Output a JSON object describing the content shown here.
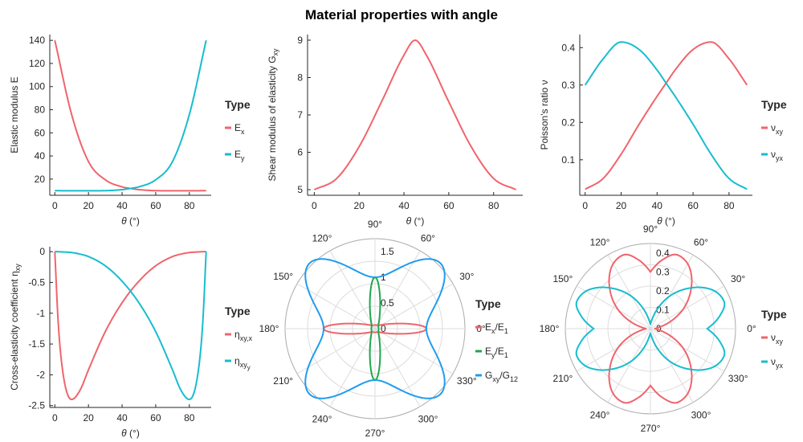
{
  "suptitle": "Material properties with angle",
  "colors": {
    "red": "#f0646c",
    "cyan": "#17bdcf",
    "green": "#1ea84a",
    "blue": "#1f9cf0",
    "axis": "#262626",
    "grid": "#dcdcdc"
  },
  "chart_data": [
    {
      "type": "line",
      "xlabel": "θ (°)",
      "ylabel": "Elastic modulus E",
      "xlim": [
        -3,
        93
      ],
      "ylim": [
        6,
        145
      ],
      "xticks": [
        0,
        20,
        40,
        60,
        80
      ],
      "yticks": [
        20,
        40,
        60,
        80,
        100,
        120,
        140
      ],
      "legend_title": "Type",
      "x": [
        0,
        10,
        20,
        30,
        40,
        45,
        50,
        60,
        70,
        80,
        90
      ],
      "series": [
        {
          "name": "Ex",
          "color": "red",
          "values": [
            140,
            75.8,
            35.2,
            19.4,
            13.3,
            11.9,
            10.9,
            10.0,
            9.9,
            9.9,
            10
          ]
        },
        {
          "name": "Ey",
          "color": "cyan",
          "values": [
            10,
            9.9,
            9.9,
            10.0,
            10.9,
            11.9,
            13.3,
            19.4,
            35.2,
            75.8,
            140
          ]
        }
      ]
    },
    {
      "type": "line",
      "xlabel": "θ (°)",
      "ylabel": "Shear modulus of elasticity Gxy",
      "xlim": [
        -3,
        93
      ],
      "ylim": [
        4.85,
        9.15
      ],
      "xticks": [
        0,
        20,
        40,
        60,
        80
      ],
      "yticks": [
        5,
        6,
        7,
        8,
        9
      ],
      "x": [
        0,
        10,
        20,
        30,
        40,
        45,
        50,
        60,
        70,
        80,
        90
      ],
      "series": [
        {
          "name": "Gxy",
          "color": "red",
          "values": [
            5.0,
            5.3,
            6.15,
            7.35,
            8.6,
            9.0,
            8.6,
            7.35,
            6.15,
            5.3,
            5.0
          ]
        }
      ]
    },
    {
      "type": "line",
      "xlabel": "θ (°)",
      "ylabel": "Poisson's ratio ν",
      "xlim": [
        -3,
        93
      ],
      "ylim": [
        0.005,
        0.435
      ],
      "xticks": [
        0,
        20,
        40,
        60,
        80
      ],
      "yticks": [
        0.1,
        0.2,
        0.3,
        0.4
      ],
      "legend_title": "Type",
      "x": [
        0,
        10,
        20,
        30,
        40,
        45,
        50,
        60,
        70,
        80,
        90
      ],
      "series": [
        {
          "name": "νxy",
          "color": "red",
          "values": [
            0.021,
            0.05,
            0.115,
            0.195,
            0.27,
            0.305,
            0.34,
            0.395,
            0.415,
            0.37,
            0.3
          ]
        },
        {
          "name": "νyx",
          "color": "cyan",
          "values": [
            0.3,
            0.37,
            0.415,
            0.395,
            0.34,
            0.305,
            0.27,
            0.195,
            0.115,
            0.05,
            0.021
          ]
        }
      ]
    },
    {
      "type": "line",
      "xlabel": "θ (°)",
      "ylabel": "Cross-elasticity coefficient ηxy",
      "xlim": [
        -3,
        93
      ],
      "ylim": [
        -2.53,
        0.08
      ],
      "xticks": [
        0,
        20,
        40,
        60,
        80
      ],
      "yticks": [
        0,
        -0.5,
        -1,
        -1.5,
        -2,
        -2.5
      ],
      "legend_title": "Type",
      "x": [
        0,
        2,
        5,
        10,
        15,
        20,
        30,
        40,
        50,
        60,
        70,
        75,
        80,
        85,
        88,
        90
      ],
      "series": [
        {
          "name": "ηxy,x",
          "color": "red",
          "values": [
            0,
            -1.15,
            -2.0,
            -2.4,
            -2.25,
            -1.92,
            -1.3,
            -0.83,
            -0.48,
            -0.23,
            -0.08,
            -0.04,
            -0.015,
            -0.005,
            -0.001,
            0
          ]
        },
        {
          "name": "ηxyy",
          "color": "cyan",
          "values": [
            0,
            -0.001,
            -0.005,
            -0.015,
            -0.04,
            -0.08,
            -0.23,
            -0.48,
            -0.83,
            -1.3,
            -1.92,
            -2.25,
            -2.4,
            -2.0,
            -1.15,
            0
          ]
        }
      ]
    },
    {
      "type": "polar",
      "rlim": [
        0,
        1.75
      ],
      "rticks": [
        0,
        0.5,
        1,
        1.5
      ],
      "angle_ticks": [
        0,
        30,
        60,
        90,
        120,
        150,
        180,
        210,
        240,
        270,
        300,
        330
      ],
      "legend_title": "Type",
      "series": [
        {
          "name": "Ex/E1",
          "color": "red",
          "description_values": {
            "r_at_0": 1.0,
            "r_at_90": 0.071
          }
        },
        {
          "name": "Ey/E1",
          "color": "green",
          "description_values": {
            "r_at_0": 0.071,
            "r_at_90": 1.0
          }
        },
        {
          "name": "Gxy/G12",
          "color": "blue",
          "description_values": {
            "r_at_0": 1.0,
            "r_at_45": 1.8
          }
        }
      ]
    },
    {
      "type": "polar",
      "rlim": [
        0,
        0.45
      ],
      "rticks": [
        0,
        0.1,
        0.2,
        0.3,
        0.4
      ],
      "angle_ticks": [
        0,
        30,
        60,
        90,
        120,
        150,
        180,
        210,
        240,
        270,
        300,
        330
      ],
      "legend_title": "Type",
      "series": [
        {
          "name": "νxy",
          "color": "red",
          "description_values": {
            "r_at_0": 0.021,
            "r_peak": 0.415,
            "r_at_90": 0.3
          }
        },
        {
          "name": "νyx",
          "color": "cyan",
          "description_values": {
            "r_at_0": 0.3,
            "r_peak": 0.415,
            "r_at_90": 0.021
          }
        }
      ]
    }
  ],
  "legends": {
    "e": [
      {
        "base": "E",
        "sub": "x"
      },
      {
        "base": "E",
        "sub": "y"
      }
    ],
    "nu": [
      {
        "base": "ν",
        "sub": "xy"
      },
      {
        "base": "ν",
        "sub": "yx"
      }
    ],
    "eta": [
      {
        "base": "η",
        "sub": "xy,x"
      },
      {
        "base": "η",
        "sub": "xy",
        "subsub": "y"
      }
    ],
    "polar_e": [
      {
        "base": "E",
        "sub": "x",
        "tail": "/E",
        "tailsub": "1"
      },
      {
        "base": "E",
        "sub": "y",
        "tail": "/E",
        "tailsub": "1"
      },
      {
        "base": "G",
        "sub": "xy",
        "tail": "/G",
        "tailsub": "12"
      }
    ],
    "polar_nu": [
      {
        "base": "ν",
        "sub": "xy"
      },
      {
        "base": "ν",
        "sub": "yx"
      }
    ]
  }
}
